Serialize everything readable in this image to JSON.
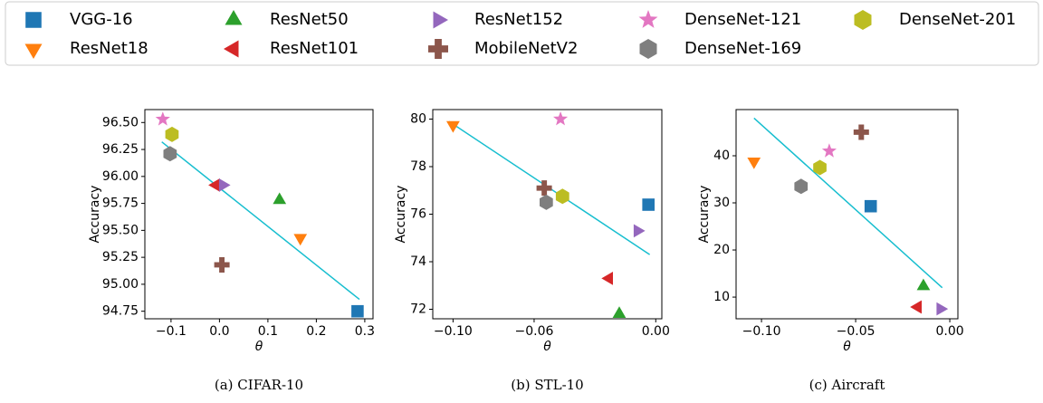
{
  "legend": [
    {
      "name": "VGG-16",
      "color": "#1f77b4",
      "marker": "square"
    },
    {
      "name": "ResNet18",
      "color": "#ff7f0e",
      "marker": "tri-down"
    },
    {
      "name": "ResNet50",
      "color": "#2ca02c",
      "marker": "tri-up"
    },
    {
      "name": "ResNet101",
      "color": "#d62728",
      "marker": "tri-left"
    },
    {
      "name": "ResNet152",
      "color": "#9467bd",
      "marker": "tri-right"
    },
    {
      "name": "MobileNetV2",
      "color": "#8c564b",
      "marker": "plus"
    },
    {
      "name": "DenseNet-121",
      "color": "#e377c2",
      "marker": "star"
    },
    {
      "name": "DenseNet-169",
      "color": "#7f7f7f",
      "marker": "hexagon"
    },
    {
      "name": "DenseNet-201",
      "color": "#bcbd22",
      "marker": "hexagon"
    }
  ],
  "chart_data": [
    {
      "type": "scatter",
      "caption": "(a)  CIFAR-10",
      "xlabel": "θ",
      "ylabel": "Accuracy",
      "xlim": [
        -0.154,
        0.317
      ],
      "ylim": [
        94.68,
        96.62
      ],
      "xticks": [
        {
          "value": -0.1,
          "label": "−0.1"
        },
        {
          "value": 0,
          "label": "0.0"
        },
        0.1,
        0.2,
        0.3
      ],
      "yticks": [
        94.75,
        {
          "value": 95,
          "label": "95.00"
        },
        95.25,
        {
          "value": 95.5,
          "label": "95.50"
        },
        95.75,
        {
          "value": 96,
          "label": "96.00"
        },
        96.25,
        {
          "value": 96.5,
          "label": "96.50"
        }
      ],
      "x": [
        0.285,
        0.167,
        0.124,
        -0.007,
        0.007,
        0.005,
        -0.117,
        -0.102,
        -0.098
      ],
      "values": [
        94.75,
        95.43,
        95.78,
        95.92,
        95.92,
        95.18,
        96.53,
        96.21,
        96.39
      ],
      "fit_x": [
        -0.119,
        0.289
      ],
      "fit_y": [
        96.32,
        94.86
      ],
      "fit_color": "#17becf"
    },
    {
      "type": "scatter",
      "caption": "(b)  STL-10",
      "xlabel": "θ",
      "ylabel": "Accuracy",
      "xlim": [
        -0.11,
        0.003
      ],
      "ylim": [
        71.6,
        80.4
      ],
      "xticks": [
        {
          "value": -0.1,
          "label": "−0.10"
        },
        {
          "value": -0.06,
          "label": "−0.06"
        },
        {
          "value": 0,
          "label": "0.00"
        }
      ],
      "yticks": [
        72,
        74,
        76,
        78,
        80
      ],
      "x": [
        -0.0036,
        -0.1,
        -0.018,
        -0.023,
        -0.009,
        -0.055,
        -0.047,
        -0.054,
        -0.046
      ],
      "values": [
        76.4,
        79.75,
        71.8,
        73.3,
        75.3,
        77.1,
        80.0,
        76.5,
        76.75
      ],
      "fit_x": [
        -0.102,
        -0.003
      ],
      "fit_y": [
        79.9,
        74.3
      ],
      "fit_color": "#17becf"
    },
    {
      "type": "scatter",
      "caption": "(c)  Aircraft",
      "xlabel": "θ",
      "ylabel": "Accuracy",
      "xlim": [
        -0.1135,
        0.0043
      ],
      "ylim": [
        5.4,
        49.8
      ],
      "xticks": [
        {
          "value": -0.1,
          "label": "−0.10"
        },
        {
          "value": -0.05,
          "label": "−0.05"
        },
        {
          "value": 0,
          "label": "0.00"
        }
      ],
      "yticks": [
        10,
        20,
        30,
        40
      ],
      "x": [
        -0.042,
        -0.104,
        -0.014,
        -0.017,
        -0.005,
        -0.047,
        -0.064,
        -0.079,
        -0.069
      ],
      "values": [
        29.3,
        38.8,
        12.3,
        7.9,
        7.5,
        45,
        41,
        33.5,
        37.5
      ],
      "fit_x": [
        -0.104,
        -0.004
      ],
      "fit_y": [
        48,
        12
      ],
      "fit_color": "#17becf"
    }
  ]
}
